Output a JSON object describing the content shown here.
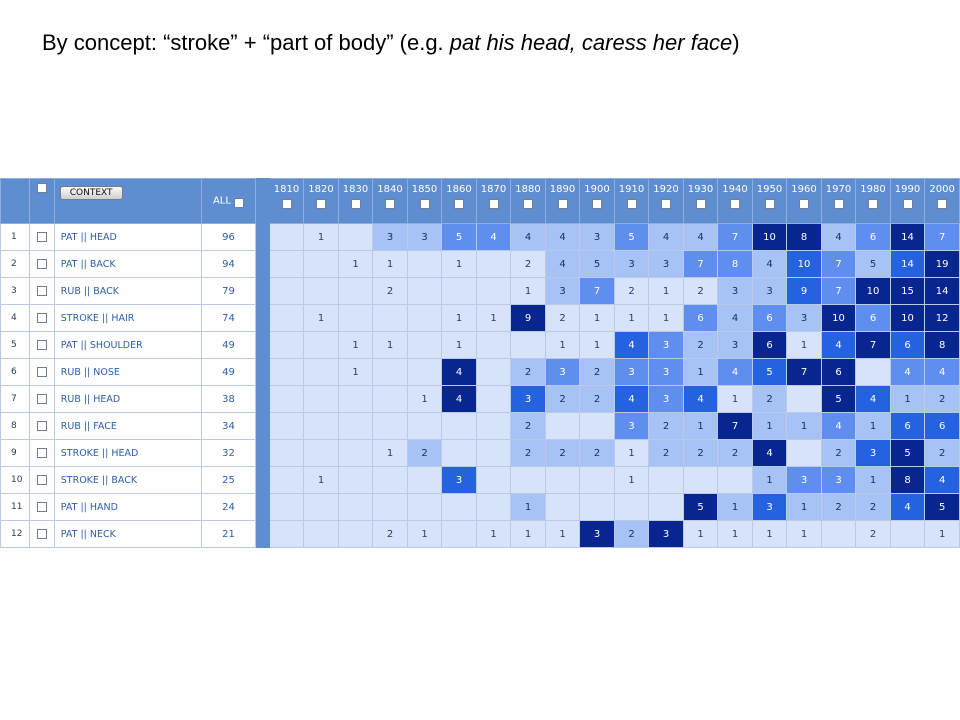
{
  "slide": {
    "title_prefix": "By concept:  “stroke” + “part of body” (e.g. ",
    "title_example": "pat his head, caress her face",
    "title_suffix": ")"
  },
  "table": {
    "context_label": "CONTEXT",
    "all_label": "ALL",
    "years": [
      "1810",
      "1820",
      "1830",
      "1840",
      "1850",
      "1860",
      "1870",
      "1880",
      "1890",
      "1900",
      "1910",
      "1920",
      "1930",
      "1940",
      "1950",
      "1960",
      "1970",
      "1980",
      "1990",
      "2000"
    ],
    "rows": [
      {
        "num": "1",
        "word": "PAT || HEAD",
        "all": "96",
        "vals": [
          "",
          "1",
          "",
          "3",
          "3",
          "5",
          "4",
          "4",
          "4",
          "3",
          "5",
          "4",
          "4",
          "7",
          "10",
          "8",
          "4",
          "6",
          "14",
          "7"
        ],
        "shade": [
          0,
          0,
          0,
          1,
          1,
          2,
          2,
          1,
          1,
          1,
          2,
          1,
          1,
          2,
          4,
          4,
          1,
          2,
          4,
          2
        ]
      },
      {
        "num": "2",
        "word": "PAT || BACK",
        "all": "94",
        "vals": [
          "",
          "",
          "1",
          "1",
          "",
          "1",
          "",
          "2",
          "4",
          "5",
          "3",
          "3",
          "7",
          "8",
          "4",
          "10",
          "7",
          "5",
          "14",
          "19"
        ],
        "shade": [
          0,
          0,
          0,
          0,
          0,
          0,
          0,
          0,
          1,
          1,
          1,
          1,
          2,
          2,
          1,
          3,
          2,
          1,
          3,
          4
        ]
      },
      {
        "num": "3",
        "word": "RUB || BACK",
        "all": "79",
        "vals": [
          "",
          "",
          "",
          "2",
          "",
          "",
          "",
          "1",
          "3",
          "7",
          "2",
          "1",
          "2",
          "3",
          "3",
          "9",
          "7",
          "10",
          "15",
          "14"
        ],
        "shade": [
          0,
          0,
          0,
          0,
          0,
          0,
          0,
          0,
          1,
          2,
          0,
          0,
          0,
          1,
          1,
          3,
          2,
          4,
          4,
          4
        ]
      },
      {
        "num": "4",
        "word": "STROKE || HAIR",
        "all": "74",
        "vals": [
          "",
          "1",
          "",
          "",
          "",
          "1",
          "1",
          "9",
          "2",
          "1",
          "1",
          "1",
          "6",
          "4",
          "6",
          "3",
          "10",
          "6",
          "10",
          "12"
        ],
        "shade": [
          0,
          0,
          0,
          0,
          0,
          0,
          0,
          4,
          0,
          0,
          0,
          0,
          2,
          1,
          2,
          1,
          4,
          2,
          4,
          4
        ]
      },
      {
        "num": "5",
        "word": "PAT || SHOULDER",
        "all": "49",
        "vals": [
          "",
          "",
          "1",
          "1",
          "",
          "1",
          "",
          "",
          "1",
          "1",
          "4",
          "3",
          "2",
          "3",
          "6",
          "1",
          "4",
          "7",
          "6",
          "8"
        ],
        "shade": [
          0,
          0,
          0,
          0,
          0,
          0,
          0,
          0,
          0,
          0,
          3,
          2,
          1,
          1,
          4,
          0,
          3,
          4,
          3,
          4
        ]
      },
      {
        "num": "6",
        "word": "RUB || NOSE",
        "all": "49",
        "vals": [
          "",
          "",
          "1",
          "",
          "",
          "4",
          "",
          "2",
          "3",
          "2",
          "3",
          "3",
          "1",
          "4",
          "5",
          "7",
          "6",
          "",
          "4",
          "4"
        ],
        "shade": [
          0,
          0,
          0,
          0,
          0,
          4,
          0,
          1,
          2,
          1,
          2,
          2,
          1,
          2,
          3,
          4,
          4,
          0,
          2,
          2
        ]
      },
      {
        "num": "7",
        "word": "RUB || HEAD",
        "all": "38",
        "vals": [
          "",
          "",
          "",
          "",
          "1",
          "4",
          "",
          "3",
          "2",
          "2",
          "4",
          "3",
          "4",
          "1",
          "2",
          "",
          "5",
          "4",
          "1",
          "2"
        ],
        "shade": [
          0,
          0,
          0,
          0,
          0,
          4,
          0,
          3,
          1,
          1,
          3,
          2,
          3,
          0,
          1,
          0,
          4,
          3,
          1,
          1
        ]
      },
      {
        "num": "8",
        "word": "RUB || FACE",
        "all": "34",
        "vals": [
          "",
          "",
          "",
          "",
          "",
          "",
          "",
          "2",
          "",
          "",
          "3",
          "2",
          "1",
          "7",
          "1",
          "1",
          "4",
          "1",
          "6",
          "6"
        ],
        "shade": [
          0,
          0,
          0,
          0,
          0,
          0,
          0,
          1,
          0,
          0,
          2,
          1,
          1,
          4,
          1,
          1,
          2,
          1,
          3,
          3
        ]
      },
      {
        "num": "9",
        "word": "STROKE || HEAD",
        "all": "32",
        "vals": [
          "",
          "",
          "",
          "1",
          "2",
          "",
          "",
          "2",
          "2",
          "2",
          "1",
          "2",
          "2",
          "2",
          "4",
          "",
          "2",
          "3",
          "5",
          "2"
        ],
        "shade": [
          0,
          0,
          0,
          0,
          1,
          0,
          0,
          1,
          1,
          1,
          0,
          1,
          1,
          1,
          4,
          0,
          1,
          3,
          4,
          1
        ]
      },
      {
        "num": "10",
        "word": "STROKE || BACK",
        "all": "25",
        "vals": [
          "",
          "1",
          "",
          "",
          "",
          "3",
          "",
          "",
          "",
          "",
          "1",
          "",
          "",
          "",
          "1",
          "3",
          "3",
          "1",
          "8",
          "4"
        ],
        "shade": [
          0,
          0,
          0,
          0,
          0,
          3,
          0,
          0,
          0,
          0,
          0,
          0,
          0,
          0,
          1,
          2,
          2,
          1,
          4,
          3
        ]
      },
      {
        "num": "11",
        "word": "PAT || HAND",
        "all": "24",
        "vals": [
          "",
          "",
          "",
          "",
          "",
          "",
          "",
          "1",
          "",
          "",
          "",
          "",
          "5",
          "1",
          "3",
          "1",
          "2",
          "2",
          "4",
          "5"
        ],
        "shade": [
          0,
          0,
          0,
          0,
          0,
          0,
          0,
          1,
          0,
          0,
          0,
          0,
          4,
          1,
          3,
          1,
          1,
          1,
          3,
          4
        ]
      },
      {
        "num": "12",
        "word": "PAT || NECK",
        "all": "21",
        "vals": [
          "",
          "",
          "",
          "2",
          "1",
          "",
          "1",
          "1",
          "1",
          "3",
          "2",
          "3",
          "1",
          "1",
          "1",
          "1",
          "",
          "2",
          "",
          "1"
        ],
        "shade": [
          0,
          0,
          0,
          0,
          0,
          0,
          0,
          0,
          0,
          4,
          1,
          4,
          0,
          0,
          0,
          0,
          0,
          0,
          0,
          0
        ]
      }
    ]
  }
}
